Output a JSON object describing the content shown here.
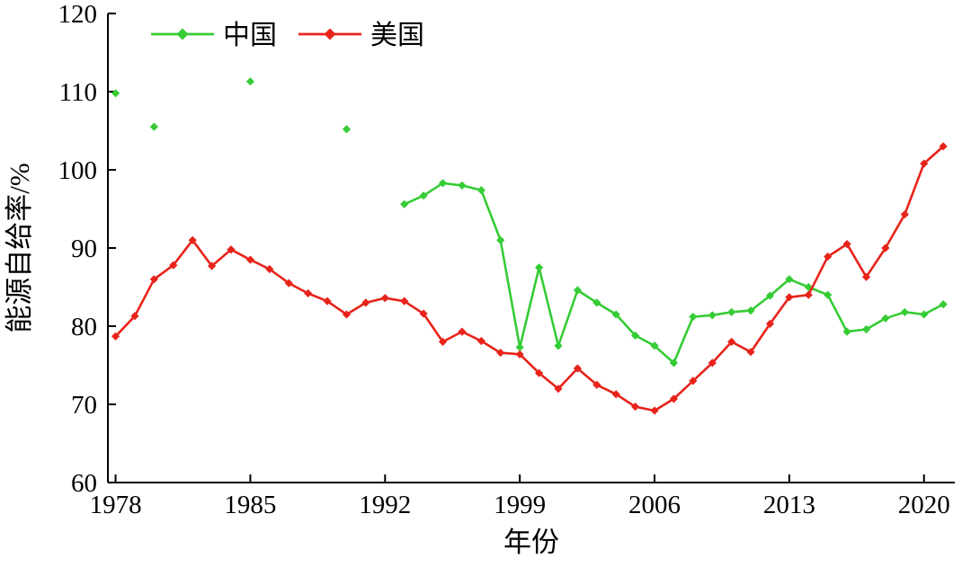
{
  "figure": {
    "background_color": "#ffffff",
    "axis_color": "#000000"
  },
  "chart_data": {
    "type": "line",
    "title": "",
    "xlabel": "年份",
    "ylabel": "能源自给率/%",
    "xlim": [
      1977.6,
      2021.6
    ],
    "ylim": [
      60,
      120
    ],
    "xticks": [
      1978,
      1985,
      1992,
      1999,
      2006,
      2013,
      2020
    ],
    "yticks": [
      60,
      70,
      80,
      90,
      100,
      110,
      120
    ],
    "grid": false,
    "legend_position": "top-left-inside",
    "series": [
      {
        "name": "中国",
        "color": "#35cc35",
        "marker": "diamond",
        "segments": [
          {
            "x0": 1978,
            "y": [
              109.8
            ]
          },
          {
            "x0": 1980,
            "y": [
              105.5
            ]
          },
          {
            "x0": 1985,
            "y": [
              111.3
            ]
          },
          {
            "x0": 1990,
            "y": [
              105.2
            ]
          },
          {
            "x0": 1993,
            "y": [
              95.6,
              96.7,
              98.3,
              98.0,
              97.4,
              91.0,
              77.3,
              87.5,
              77.5,
              84.6,
              83.0,
              81.5,
              78.8,
              77.5,
              75.3,
              81.2,
              81.4,
              81.8,
              82.0,
              83.9,
              86.0,
              85.0,
              84.0,
              79.3,
              79.6,
              81.0,
              81.8,
              81.5,
              82.8
            ]
          }
        ]
      },
      {
        "name": "美国",
        "color": "#e8231a",
        "marker": "diamond",
        "segments": [
          {
            "x0": 1978,
            "y": [
              78.7,
              81.3,
              86.0,
              87.8,
              91.0,
              87.7,
              89.8,
              88.5,
              87.3,
              85.5,
              84.2,
              83.2,
              81.5,
              83.0,
              83.6,
              83.2,
              81.6,
              78.0,
              79.3,
              78.1,
              76.6,
              76.4,
              74.0,
              72.0,
              74.6,
              72.5,
              71.3,
              69.7,
              69.2,
              70.7,
              73.0,
              75.3,
              78.0,
              76.7,
              80.3,
              83.7,
              84.0,
              88.9,
              90.5,
              86.3,
              90.0,
              94.3,
              100.8,
              103.0
            ]
          }
        ]
      }
    ]
  }
}
